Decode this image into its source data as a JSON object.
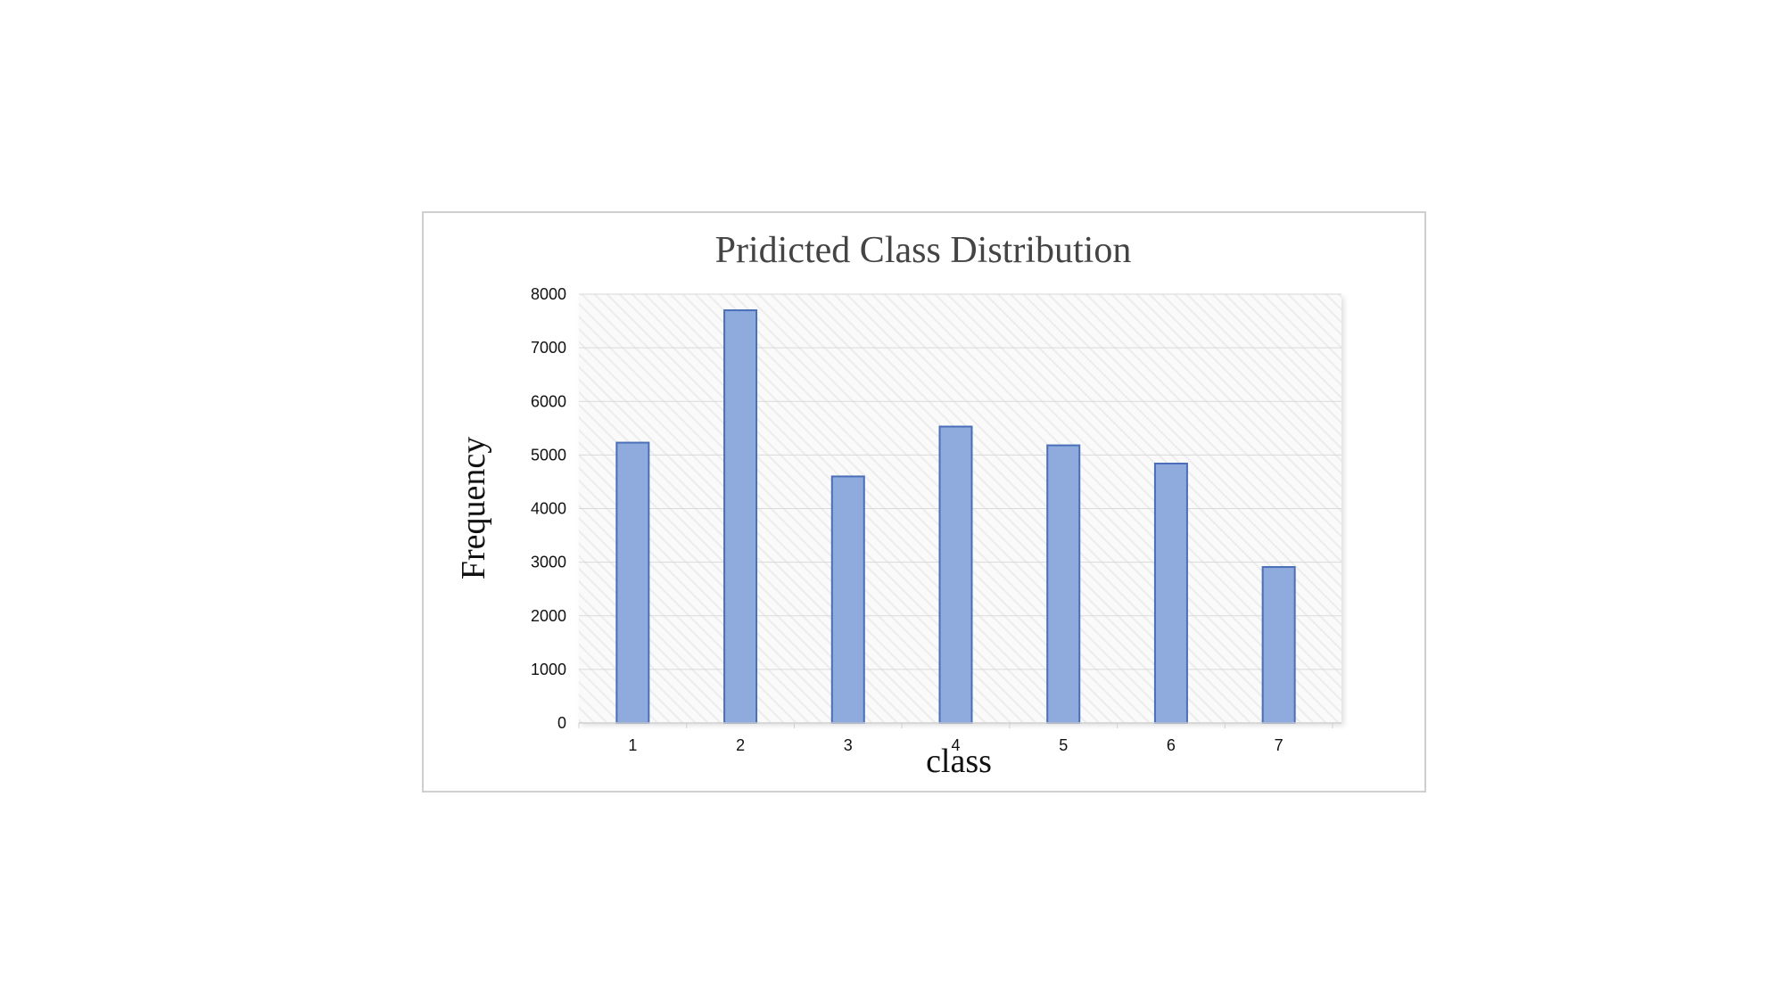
{
  "chart_data": {
    "type": "bar",
    "title": "Pridicted Class Distribution",
    "xlabel": "class",
    "ylabel": "Frequency",
    "categories": [
      "1",
      "2",
      "3",
      "4",
      "5",
      "6",
      "7"
    ],
    "values": [
      5230,
      7700,
      4600,
      5530,
      5180,
      4840,
      2910
    ],
    "ylim": [
      0,
      8000
    ],
    "yticks": [
      "0",
      "1000",
      "2000",
      "3000",
      "4000",
      "5000",
      "6000",
      "7000",
      "8000"
    ],
    "grid": true,
    "legend": "none",
    "colors": {
      "bar_fill": "#8FAADC",
      "bar_stroke": "#4A6FB8",
      "grid": "#d9d9d9",
      "plot_background": "#f7f7f7",
      "title": "#444444"
    }
  }
}
